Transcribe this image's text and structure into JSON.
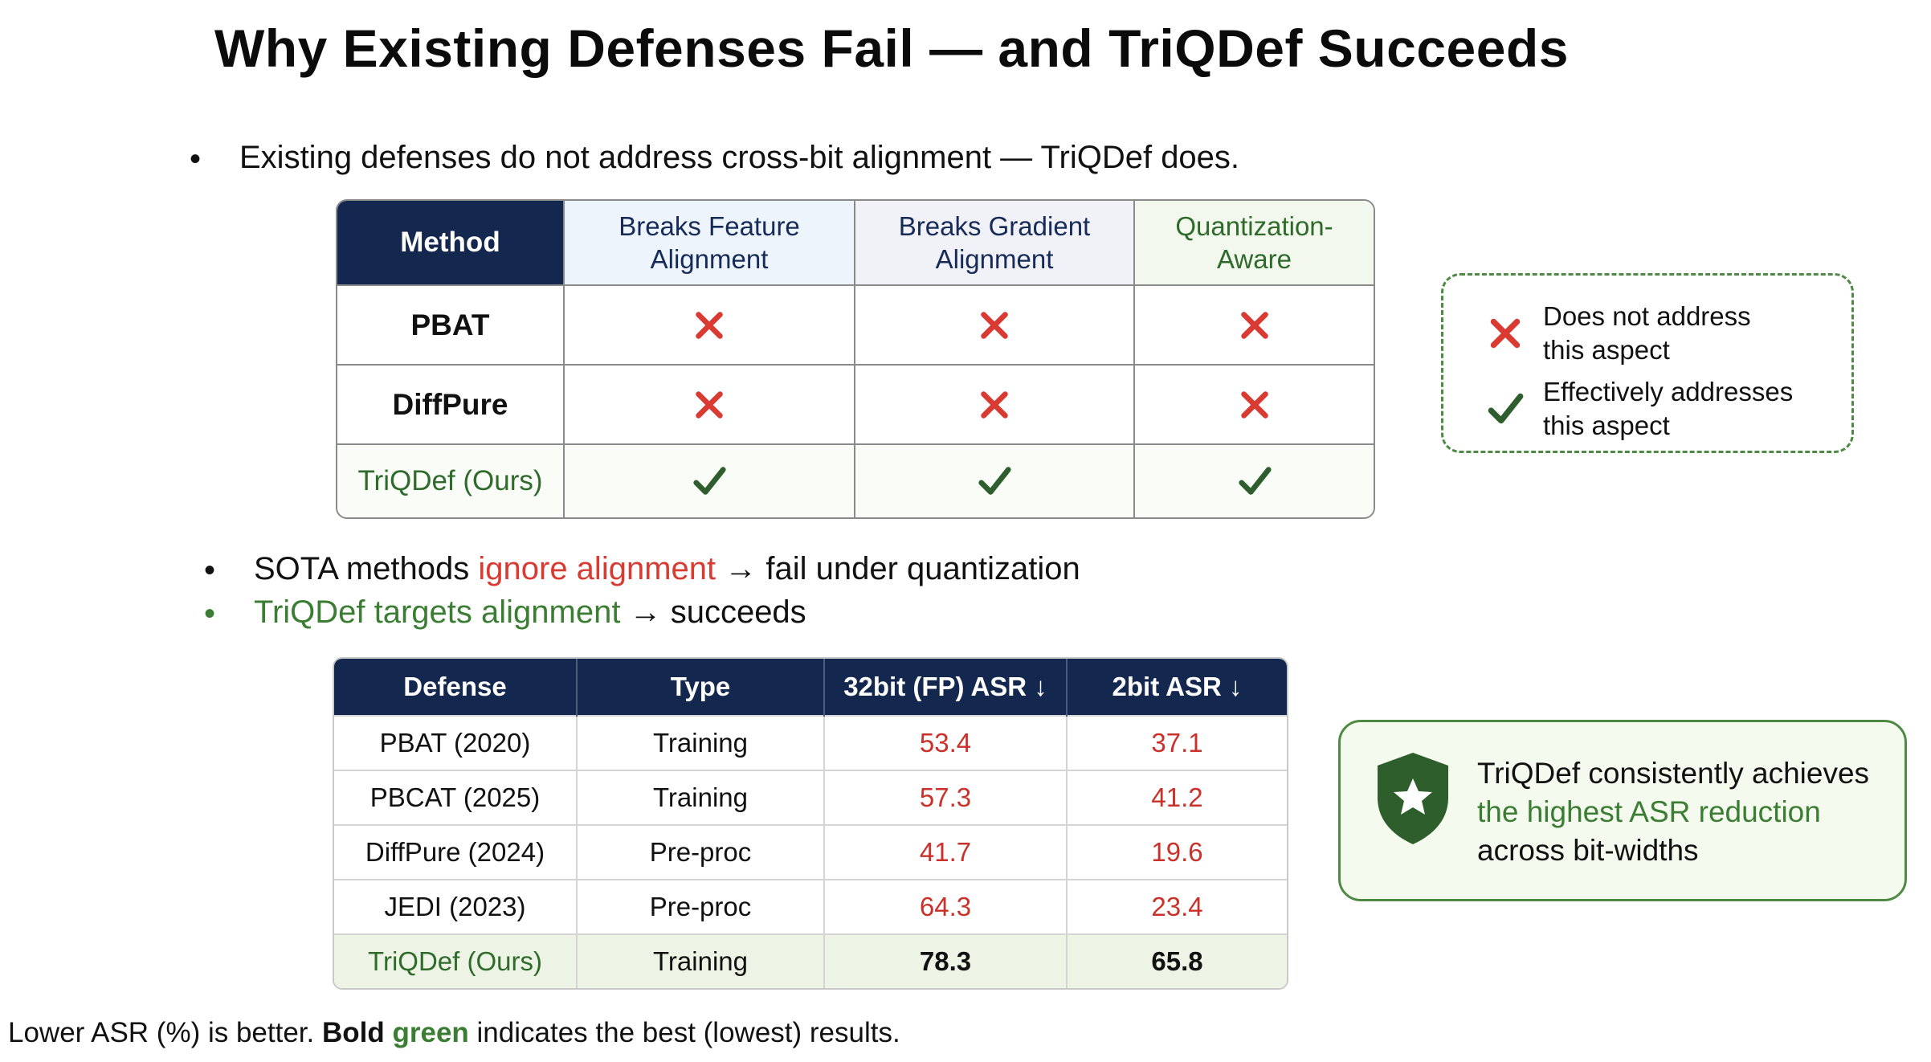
{
  "title": "Why Existing Defenses Fail — and TriQDef Succeeds",
  "bullet1": "Existing defenses do not address cross-bit alignment — TriQDef does.",
  "alignment_table": {
    "headers": {
      "method": "Method",
      "feature": [
        "Breaks Feature",
        "Alignment"
      ],
      "gradient": [
        "Breaks Gradient",
        "Alignment"
      ],
      "quant": [
        "Quantization-",
        "Aware"
      ]
    },
    "rows": [
      {
        "name": "PBAT",
        "marks": [
          "cross",
          "cross",
          "cross"
        ]
      },
      {
        "name": "DiffPure",
        "marks": [
          "cross",
          "cross",
          "cross"
        ]
      },
      {
        "name": "TriQDef (Ours)",
        "marks": [
          "check",
          "check",
          "check"
        ]
      }
    ]
  },
  "legend": {
    "cross": [
      "Does not address",
      "this aspect"
    ],
    "check": [
      "Effectively addresses",
      "this aspect"
    ]
  },
  "bullet2": {
    "a": "SOTA methods ",
    "b": "ignore alignment",
    "c": " → fail under quantization"
  },
  "bullet3": {
    "a": "TriQDef targets alignment",
    "b": " → succeeds"
  },
  "results_table": {
    "headers": [
      "Defense",
      "Type",
      "32bit (FP) ASR ↓",
      "2bit ASR ↓"
    ],
    "rows": [
      [
        "PBAT (2020)",
        "Training",
        "53.4",
        "37.1"
      ],
      [
        "PBCAT (2025)",
        "Training",
        "57.3",
        "41.2"
      ],
      [
        "DiffPure (2024)",
        "Pre-proc",
        "41.7",
        "19.6"
      ],
      [
        "JEDI (2023)",
        "Pre-proc",
        "64.3",
        "23.4"
      ],
      [
        "TriQDef (Ours)",
        "Training",
        "78.3",
        "65.8"
      ]
    ]
  },
  "callout": {
    "line1": "TriQDef consistently achieves",
    "line2": "the highest ASR reduction",
    "line3": "across bit-widths"
  },
  "footnote": {
    "a": "Lower ASR (%) is better. ",
    "b": "Bold",
    "c": " ",
    "d": "green",
    "e": " indicates the best (lowest) results."
  },
  "colors": {
    "navy": "#14284f",
    "red": "#d93a32",
    "green": "#3b7d33"
  }
}
